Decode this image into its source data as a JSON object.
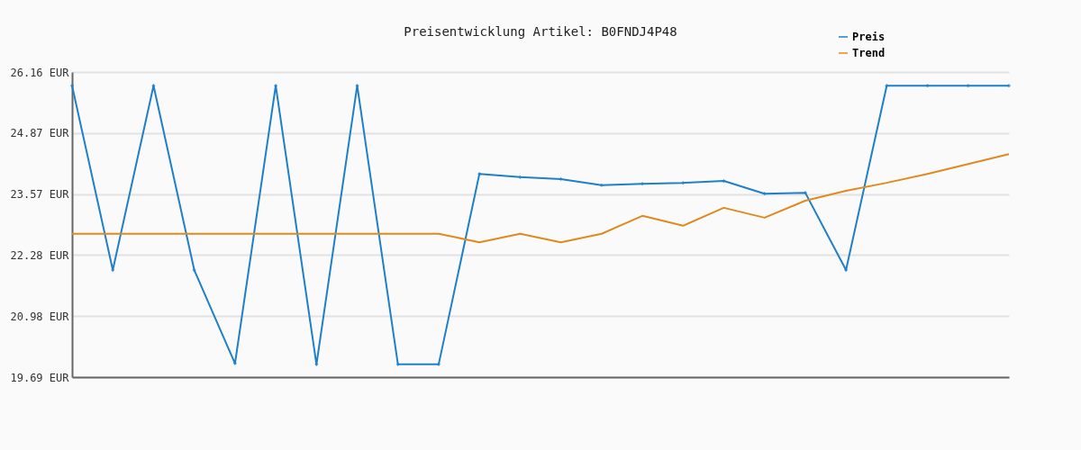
{
  "chart_data": {
    "type": "line",
    "title": "Preisentwicklung Artikel: B0FNDJ4P48",
    "categories": [
      null,
      null,
      null,
      null,
      null,
      null,
      null,
      null,
      null,
      null,
      null,
      null,
      null,
      null,
      null,
      null,
      null,
      null,
      null,
      null,
      null,
      null,
      null,
      null
    ],
    "series": [
      {
        "name": "Preis",
        "color": "#1f7fc8",
        "marker": "diamond",
        "values": [
          25.87,
          21.96,
          25.87,
          21.96,
          19.98,
          25.87,
          19.96,
          25.87,
          19.96,
          19.96,
          24.0,
          23.93,
          23.89,
          23.76,
          23.79,
          23.81,
          23.85,
          23.58,
          23.6,
          21.96,
          25.87,
          25.87,
          25.87,
          25.87
        ]
      },
      {
        "name": "Trend",
        "color": "#e08a1e",
        "marker": "none",
        "values": [
          22.73,
          22.73,
          22.73,
          22.73,
          22.73,
          22.73,
          22.73,
          22.73,
          22.73,
          22.73,
          22.55,
          22.73,
          22.55,
          22.73,
          23.11,
          22.9,
          23.28,
          23.07,
          23.43,
          23.64,
          23.81,
          24.0,
          24.21,
          24.42
        ]
      }
    ],
    "ylim": [
      19.69,
      26.16
    ],
    "yticks": [
      {
        "value": 19.69,
        "label": "19.69 EUR"
      },
      {
        "value": 20.98,
        "label": "20.98 EUR"
      },
      {
        "value": 22.28,
        "label": "22.28 EUR"
      },
      {
        "value": 23.57,
        "label": "23.57 EUR"
      },
      {
        "value": 24.87,
        "label": "24.87 EUR"
      },
      {
        "value": 26.16,
        "label": "26.16 EUR"
      }
    ],
    "grid": "y",
    "legend": "top right"
  }
}
